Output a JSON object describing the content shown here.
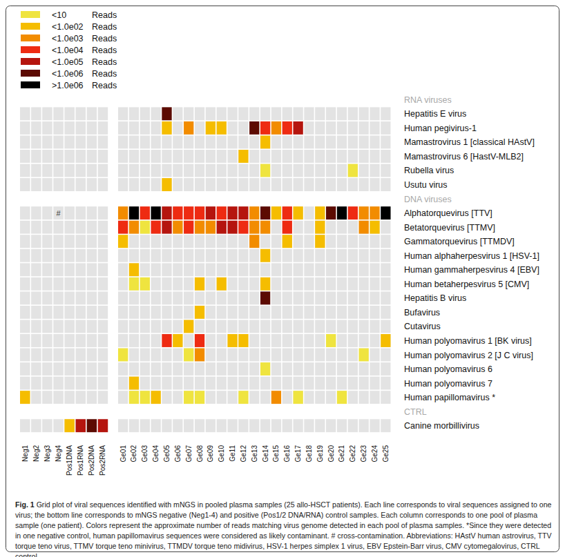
{
  "chart_data": {
    "type": "heatmap",
    "legend_entries": [
      {
        "label": "<10 Reads",
        "color": "#efe43f"
      },
      {
        "label": "<1.0e02 Reads",
        "color": "#f5bd00"
      },
      {
        "label": "<1.0e03 Reads",
        "color": "#f28c00"
      },
      {
        "label": "<1.0e04 Reads",
        "color": "#ee2b12"
      },
      {
        "label": "<1.0e05 Reads",
        "color": "#b5150e"
      },
      {
        "label": "<1.0e06 Reads",
        "color": "#5c0b02"
      },
      {
        "label": ">1.0e06 Reads",
        "color": "#000000"
      }
    ],
    "column_blocks": [
      [
        "Neg1",
        "Neg2",
        "Neg3",
        "Neg4",
        "Pos1DNA",
        "Pos1RNA",
        "Pos2DNA",
        "Pos2RNA"
      ],
      [
        "Ge01",
        "Ge02",
        "Ge03",
        "Ge04",
        "Ge05",
        "Ge06",
        "Ge07",
        "Ge08",
        "Ge09",
        "Ge10",
        "Ge11",
        "Ge12",
        "Ge13",
        "Ge14",
        "Ge15",
        "Ge16",
        "Ge17",
        "Ge18",
        "Ge19",
        "Ge20",
        "Ge21",
        "Ge22",
        "Ge23",
        "Ge24",
        "Ge25"
      ]
    ],
    "groups": [
      {
        "name": "RNA viruses",
        "rows": [
          {
            "name": "Hepatitis E virus",
            "cells": {
              "Ge05": "<1.0e06 Reads"
            }
          },
          {
            "name": "Human pegivirus-1",
            "cells": {
              "Ge05": "<1.0e02 Reads",
              "Ge07": "<1.0e03 Reads",
              "Ge09": "<1.0e02 Reads",
              "Ge10": "<1.0e02 Reads",
              "Ge13": "<1.0e06 Reads",
              "Ge14": "<1.0e04 Reads",
              "Ge15": "<1.0e03 Reads",
              "Ge16": "<1.0e04 Reads",
              "Ge17": "<1.0e05 Reads"
            }
          },
          {
            "name": "Mamastrovirus 1 [classical HAstV]",
            "cells": {
              "Ge14": "<1.0e02 Reads"
            }
          },
          {
            "name": "Mamastrovirus 6 [HastV-MLB2]",
            "cells": {
              "Ge12": "<1.0e02 Reads"
            }
          },
          {
            "name": "Rubella virus",
            "cells": {
              "Ge14": "<10 Reads",
              "Ge22": "<10 Reads"
            }
          },
          {
            "name": "Usutu virus",
            "cells": {
              "Ge05": "<1.0e02 Reads"
            }
          }
        ]
      },
      {
        "name": "DNA viruses",
        "rows": [
          {
            "name": "Alphatorquevirus [TTV]",
            "cells": {
              "Ge01": "<1.0e03 Reads",
              "Ge02": ">1.0e06 Reads",
              "Ge03": "<1.0e04 Reads",
              "Ge04": ">1.0e06 Reads",
              "Ge05": "<1.0e05 Reads",
              "Ge06": "<1.0e04 Reads",
              "Ge07": "<1.0e04 Reads",
              "Ge08": "<1.0e04 Reads",
              "Ge09": "<1.0e05 Reads",
              "Ge10": "<1.0e04 Reads",
              "Ge11": "<1.0e05 Reads",
              "Ge12": "<1.0e05 Reads",
              "Ge13": "<1.0e03 Reads",
              "Ge14": "<1.0e06 Reads",
              "Ge15": "<1.0e02 Reads",
              "Ge16": "<1.0e04 Reads",
              "Ge17": "<1.0e02 Reads",
              "Ge19": "<1.0e02 Reads",
              "Ge20": "<1.0e06 Reads",
              "Ge21": ">1.0e06 Reads",
              "Ge22": "<1.0e04 Reads",
              "Ge23": "<1.0e03 Reads",
              "Ge24": "<1.0e03 Reads",
              "Ge25": ">1.0e06 Reads"
            }
          },
          {
            "name": "Betatorquevirus [TTMV]",
            "cells": {
              "Ge01": "<1.0e04 Reads",
              "Ge02": "<1.0e03 Reads",
              "Ge03": "<10 Reads",
              "Ge04": "<1.0e04 Reads",
              "Ge05": "<1.0e05 Reads",
              "Ge06": "<1.0e03 Reads",
              "Ge07": "<1.0e04 Reads",
              "Ge08": "<1.0e03 Reads",
              "Ge09": "<1.0e03 Reads",
              "Ge10": "<1.0e05 Reads",
              "Ge11": "<1.0e05 Reads",
              "Ge12": "<1.0e04 Reads",
              "Ge13": "<1.0e03 Reads",
              "Ge14": "<1.0e03 Reads",
              "Ge16": "<1.0e04 Reads",
              "Ge19": "<1.0e02 Reads",
              "Ge23": "<1.0e03 Reads",
              "Ge24": "<1.0e02 Reads"
            }
          },
          {
            "name": "Gammatorquevirus [TTMDV]",
            "cells": {
              "Ge01": "<1.0e02 Reads",
              "Ge13": "<1.0e03 Reads",
              "Ge16": "<1.0e02 Reads",
              "Ge19": "<1.0e02 Reads"
            }
          },
          {
            "name": "Human alphaherpesvirus 1 [HSV-1]",
            "cells": {
              "Ge14": "<1.0e02 Reads"
            }
          },
          {
            "name": "Human gammaherpesvirus 4 [EBV]",
            "cells": {
              "Ge02": "<1.0e02 Reads"
            }
          },
          {
            "name": "Human betaherpesvirus 5 [CMV]",
            "cells": {
              "Ge02": "<10 Reads",
              "Ge03": "<10 Reads",
              "Ge08": "<1.0e02 Reads",
              "Ge10": "<1.0e02 Reads",
              "Ge14": "<1.0e02 Reads"
            }
          },
          {
            "name": "Hepatitis B virus",
            "cells": {
              "Ge14": "<1.0e06 Reads"
            }
          },
          {
            "name": "Bufavirus",
            "cells": {
              "Ge08": "<1.0e02 Reads"
            }
          },
          {
            "name": "Cutavirus",
            "cells": {
              "Ge07": "<1.0e02 Reads"
            }
          },
          {
            "name": "Human polyomavirus 1 [BK virus]",
            "cells": {
              "Ge05": "<1.0e04 Reads",
              "Ge06": "<1.0e02 Reads",
              "Ge08": "<1.0e04 Reads",
              "Ge11": "<1.0e02 Reads",
              "Ge12": "<1.0e02 Reads",
              "Ge20": "<10 Reads",
              "Ge25": "<1.0e02 Reads"
            }
          },
          {
            "name": "Human polyomavirus 2 [J C virus]",
            "cells": {
              "Ge01": "<10 Reads",
              "Ge07": "<10 Reads",
              "Ge08": "<1.0e03 Reads",
              "Ge23": "<10 Reads"
            }
          },
          {
            "name": "Human polyomavirus 6",
            "cells": {
              "Ge14": "<10 Reads"
            }
          },
          {
            "name": "Human polyomavirus 7",
            "cells": {
              "Ge02": "<1.0e02 Reads"
            }
          },
          {
            "name": "Human papillomavirus *",
            "cells": {
              "Neg1": "<1.0e02 Reads",
              "Ge02": "<10 Reads",
              "Ge03": "<10 Reads",
              "Ge04": "<1.0e02 Reads",
              "Ge07": "<10 Reads",
              "Ge08": "<10 Reads",
              "Ge12": "<10 Reads",
              "Ge15": "<1.0e03 Reads",
              "Ge17": "<10 Reads",
              "Ge21": "<10 Reads"
            }
          }
        ]
      },
      {
        "name": "CTRL",
        "rows": [
          {
            "name": "Canine morbillivirus",
            "cells": {
              "Pos1DNA": "<1.0e02 Reads",
              "Pos1RNA": "<1.0e05 Reads",
              "Pos2DNA": "<1.0e06 Reads",
              "Pos2RNA": "<1.0e05 Reads"
            }
          }
        ]
      }
    ],
    "annotations": [
      {
        "text": "#",
        "row": "Alphatorquevirus [TTV]",
        "column": "Neg4"
      }
    ],
    "caption_label": "Fig. 1",
    "caption": "Grid plot of viral sequences identified with mNGS in pooled plasma samples (25 allo-HSCT patients). Each line corresponds to viral sequences assigned to one virus; the bottom line corresponds to mNGS negative (Neg1-4) and positive (Pos1/2 DNA/RNA) control samples. Each column corresponds to one pool of plasma sample (one patient). Colors represent the approximate number of reads matching virus genome detected in each pool of plasma samples. *Since they were detected in one negative control, human papillomavirus sequences were considered as likely contaminant. # cross-contamination. Abbreviations: HAstV human astrovirus, TTV torque teno virus, TTMV torque teno minivirus, TTMDV torque teno midivirus, HSV-1 herpes simplex 1 virus, EBV Epstein-Barr virus, CMV cytomegalovirus, CTRL control"
  }
}
